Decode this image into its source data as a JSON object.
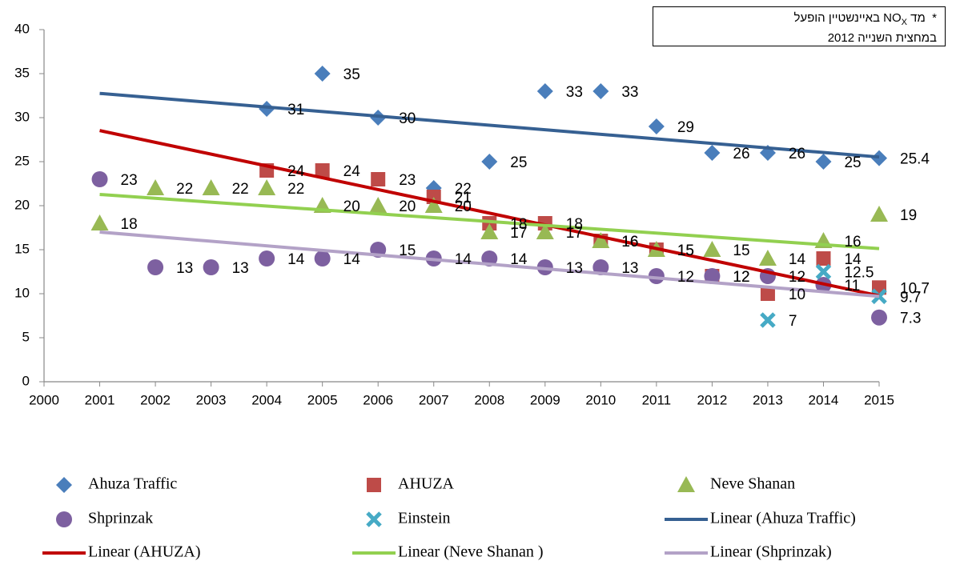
{
  "chart_data": {
    "type": "scatter",
    "x": [
      2001,
      2002,
      2003,
      2004,
      2005,
      2006,
      2007,
      2008,
      2009,
      2010,
      2011,
      2012,
      2013,
      2014,
      2015
    ],
    "xlim": [
      2000,
      2015
    ],
    "xticks": [
      2000,
      2001,
      2002,
      2003,
      2004,
      2005,
      2006,
      2007,
      2008,
      2009,
      2010,
      2011,
      2012,
      2013,
      2014,
      2015
    ],
    "ylim": [
      0,
      40
    ],
    "yticks": [
      0,
      5,
      10,
      15,
      20,
      25,
      30,
      35,
      40
    ],
    "grid": false,
    "annotation": {
      "marker": "*",
      "text_a": "מד NO",
      "sub": "X",
      "text_b": " באיינשטיין הופעל",
      "line2": "במחצית השנייה 2012"
    },
    "series": [
      {
        "name": "Ahuza Traffic",
        "marker": "diamond",
        "color": "#4a7ebb",
        "values": [
          null,
          null,
          null,
          31,
          35,
          30,
          22,
          25,
          33,
          33,
          29,
          26,
          26,
          25,
          25.4
        ],
        "trendline": {
          "name": "Linear (Ahuza Traffic)",
          "color": "#366092"
        }
      },
      {
        "name": "AHUZA",
        "marker": "square",
        "color": "#be4b48",
        "values": [
          null,
          null,
          null,
          24,
          24,
          23,
          21,
          18,
          18,
          16,
          15,
          12,
          10,
          14,
          10.7
        ],
        "trendline": {
          "name": "Linear (AHUZA)",
          "color": "#c00000"
        }
      },
      {
        "name": "Neve Shanan",
        "marker": "triangle",
        "color": "#98b954",
        "values": [
          18,
          22,
          22,
          22,
          20,
          20,
          20,
          17,
          17,
          16,
          15,
          15,
          14,
          16,
          19
        ],
        "trendline": {
          "name": "Linear (Neve Shanan )",
          "color": "#92d050"
        }
      },
      {
        "name": "Shprinzak",
        "marker": "circle",
        "color": "#7d60a0",
        "values": [
          23,
          13,
          13,
          14,
          14,
          15,
          14,
          14,
          13,
          13,
          12,
          12,
          12,
          11,
          7.3
        ],
        "trendline": {
          "name": "Linear (Shprinzak)",
          "color": "#b3a2c7"
        }
      },
      {
        "name": "Einstein",
        "marker": "x",
        "color": "#46aac5",
        "values": [
          null,
          null,
          null,
          null,
          null,
          null,
          null,
          null,
          null,
          null,
          null,
          null,
          7,
          12.5,
          9.7
        ]
      }
    ]
  }
}
